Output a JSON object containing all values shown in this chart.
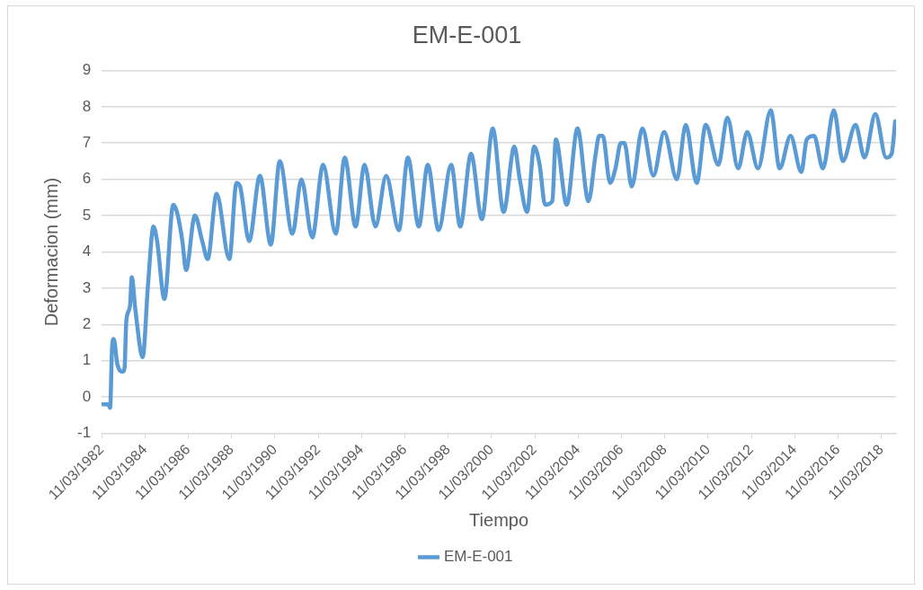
{
  "chart_data": {
    "type": "line",
    "title": "EM-E-001",
    "xlabel": "Tiempo",
    "ylabel": "Deformacion (mm)",
    "xlim": [
      "1982-03-11",
      "2018-11-15"
    ],
    "xticks": [
      {
        "value": "1982-03-11",
        "label": "11/03/1982"
      },
      {
        "value": "1984-03-11",
        "label": "11/03/1984"
      },
      {
        "value": "1986-03-11",
        "label": "11/03/1986"
      },
      {
        "value": "1988-03-11",
        "label": "11/03/1988"
      },
      {
        "value": "1990-03-11",
        "label": "11/03/1990"
      },
      {
        "value": "1992-03-11",
        "label": "11/03/1992"
      },
      {
        "value": "1994-03-11",
        "label": "11/03/1994"
      },
      {
        "value": "1996-03-11",
        "label": "11/03/1996"
      },
      {
        "value": "1998-03-11",
        "label": "11/03/1998"
      },
      {
        "value": "2000-03-11",
        "label": "11/03/2000"
      },
      {
        "value": "2002-03-11",
        "label": "11/03/2002"
      },
      {
        "value": "2004-03-11",
        "label": "11/03/2004"
      },
      {
        "value": "2006-03-11",
        "label": "11/03/2006"
      },
      {
        "value": "2008-03-11",
        "label": "11/03/2008"
      },
      {
        "value": "2010-03-11",
        "label": "11/03/2010"
      },
      {
        "value": "2012-03-11",
        "label": "11/03/2012"
      },
      {
        "value": "2014-03-11",
        "label": "11/03/2014"
      },
      {
        "value": "2016-03-11",
        "label": "11/03/2016"
      },
      {
        "value": "2018-03-11",
        "label": "11/03/2018"
      }
    ],
    "ylim": [
      -1,
      9
    ],
    "yticks": [
      -1,
      0,
      1,
      2,
      3,
      4,
      5,
      6,
      7,
      8,
      9
    ],
    "grid": "y",
    "legend": "bottom",
    "marker": "none",
    "line_style": "solid",
    "x": [
      "1982-03-11",
      "1982-07",
      "1982-08",
      "1982-09",
      "1982-10",
      "1982-12",
      "1983-03",
      "1983-04",
      "1983-05",
      "1983-07",
      "1983-08",
      "1983-10",
      "1984-02",
      "1984-05",
      "1984-08",
      "1984-10",
      "1985-02",
      "1985-07",
      "1985-09",
      "1985-12",
      "1986-02",
      "1986-07",
      "1986-11",
      "1987-02",
      "1987-07",
      "1988-02",
      "1988-06",
      "1988-08",
      "1989-01",
      "1989-07",
      "1990-01",
      "1990-06",
      "1991-01",
      "1991-06",
      "1991-12",
      "1992-06",
      "1993-01",
      "1993-06",
      "1993-12",
      "1994-05",
      "1994-11",
      "1995-05",
      "1995-12",
      "1996-05",
      "1996-11",
      "1997-04",
      "1997-10",
      "1998-05",
      "1998-10",
      "1999-04",
      "1999-10",
      "2000-04",
      "2000-10",
      "2001-04",
      "2001-07",
      "2001-11",
      "2002-03",
      "2002-06",
      "2002-09",
      "2003-01",
      "2003-03",
      "2003-09",
      "2004-03",
      "2004-09",
      "2005-01",
      "2005-03",
      "2005-05",
      "2005-09",
      "2005-12",
      "2006-03",
      "2006-05",
      "2006-09",
      "2007-03",
      "2007-09",
      "2008-03",
      "2008-10",
      "2009-03",
      "2009-09",
      "2010-02",
      "2010-09",
      "2011-02",
      "2011-08",
      "2012-01",
      "2012-07",
      "2013-02",
      "2013-07",
      "2014-01",
      "2014-07",
      "2014-10",
      "2015-02",
      "2015-07",
      "2016-01",
      "2016-06",
      "2017-01",
      "2017-06",
      "2017-12",
      "2018-06",
      "2018-09",
      "2018-11"
    ],
    "series": [
      {
        "name": "EM-E-001",
        "color": "#5b9bd5",
        "values": [
          -0.2,
          -0.2,
          -0.3,
          1.3,
          1.6,
          0.9,
          0.7,
          0.8,
          2.1,
          2.5,
          3.3,
          2.4,
          1.1,
          3.1,
          4.7,
          4.3,
          2.7,
          5.3,
          5.1,
          4.3,
          3.5,
          5.0,
          4.3,
          3.8,
          5.6,
          3.8,
          5.9,
          5.8,
          4.3,
          6.1,
          4.2,
          6.5,
          4.5,
          6.0,
          4.4,
          6.4,
          4.5,
          6.6,
          4.7,
          6.4,
          4.7,
          6.1,
          4.6,
          6.6,
          4.7,
          6.4,
          4.6,
          6.4,
          4.7,
          6.7,
          4.9,
          7.4,
          5.1,
          6.9,
          6.0,
          5.1,
          6.9,
          6.4,
          5.3,
          5.4,
          7.1,
          5.3,
          7.4,
          5.4,
          6.7,
          7.2,
          7.2,
          5.9,
          6.3,
          7.0,
          7.0,
          5.8,
          7.4,
          6.1,
          7.3,
          6.0,
          7.5,
          5.9,
          7.5,
          6.4,
          7.7,
          6.3,
          7.3,
          6.3,
          7.9,
          6.3,
          7.2,
          6.2,
          7.1,
          7.2,
          6.3,
          7.9,
          6.5,
          7.5,
          6.6,
          7.8,
          6.6,
          6.7,
          7.6
        ]
      }
    ]
  }
}
